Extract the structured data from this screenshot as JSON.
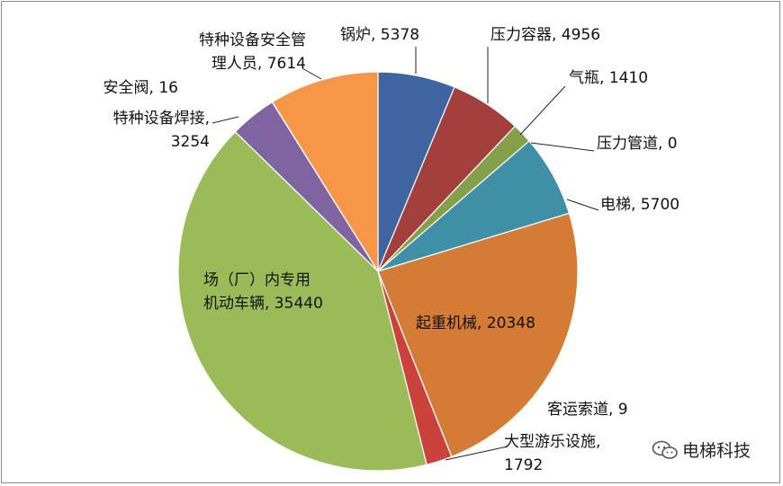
{
  "chart_data": {
    "type": "pie",
    "start_angle_deg": 0,
    "direction": "clockwise",
    "slices": [
      {
        "name": "锅炉",
        "value": 5378,
        "color": "#4064a0",
        "label": [
          "锅炉, 5378"
        ]
      },
      {
        "name": "压力容器",
        "value": 4956,
        "color": "#a33f3c",
        "label": [
          "压力容器, 4956"
        ]
      },
      {
        "name": "气瓶",
        "value": 1410,
        "color": "#84a04a",
        "label": [
          "气瓶, 1410"
        ]
      },
      {
        "name": "压力管道",
        "value": 0,
        "color": "#6e5590",
        "label": [
          "压力管道, 0"
        ]
      },
      {
        "name": "电梯",
        "value": 5700,
        "color": "#3f8fa6",
        "label": [
          "电梯, 5700"
        ]
      },
      {
        "name": "起重机械",
        "value": 20348,
        "color": "#d47b35",
        "label": [
          "起重机械, 20348"
        ]
      },
      {
        "name": "客运索道",
        "value": 9,
        "color": "#4d73a8",
        "label": [
          "客运索道, 9"
        ]
      },
      {
        "name": "大型游乐设施",
        "value": 1792,
        "color": "#c9423c",
        "label": [
          "大型游乐设施,",
          "1792"
        ]
      },
      {
        "name": "场（厂）内专用机动车辆",
        "value": 35440,
        "color": "#9bbb59",
        "label": [
          "场（厂）内专用",
          "机动车辆, 35440"
        ]
      },
      {
        "name": "特种设备焊接",
        "value": 3254,
        "color": "#8064a2",
        "label": [
          "特种设备焊接,",
          "3254"
        ]
      },
      {
        "name": "安全阀",
        "value": 16,
        "color": "#4bacc6",
        "label": [
          "安全阀, 16"
        ]
      },
      {
        "name": "特种设备安全管理人员",
        "value": 7614,
        "color": "#f79646",
        "label": [
          "特种设备安全管",
          "理人员, 7614"
        ]
      }
    ]
  },
  "watermark": {
    "text": "电梯科技",
    "icon": "wechat-icon"
  }
}
